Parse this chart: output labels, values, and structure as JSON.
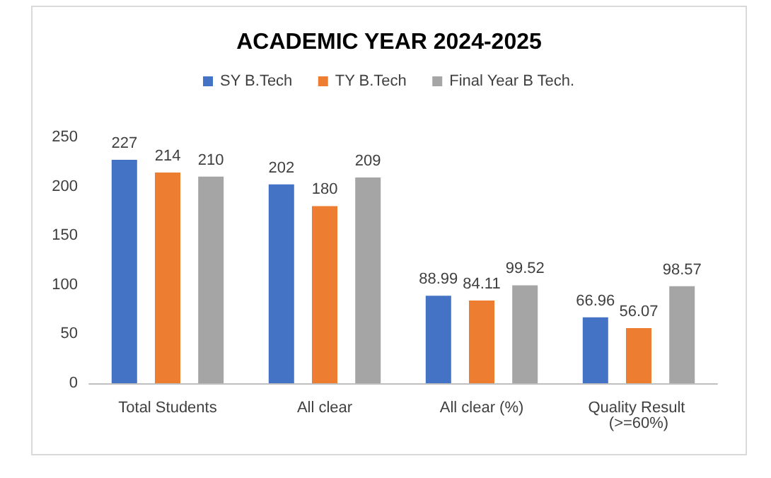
{
  "chart_data": {
    "type": "bar",
    "title": "ACADEMIC YEAR 2024-2025",
    "categories": [
      "Total Students",
      "All clear",
      "All clear (%)",
      "Quality Result (>=60%)"
    ],
    "series": [
      {
        "name": "SY B.Tech",
        "color": "#4472c4",
        "values": [
          227,
          202,
          88.99,
          66.96
        ]
      },
      {
        "name": "TY B.Tech",
        "color": "#ed7d31",
        "values": [
          214,
          180,
          84.11,
          56.07
        ]
      },
      {
        "name": "Final Year B Tech.",
        "color": "#a5a5a5",
        "values": [
          210,
          209,
          99.52,
          98.57
        ]
      }
    ],
    "ylim": [
      0,
      250
    ],
    "yticks": [
      0,
      50,
      100,
      150,
      200,
      250
    ],
    "grid": false,
    "legend": "top",
    "data_labels": true
  }
}
